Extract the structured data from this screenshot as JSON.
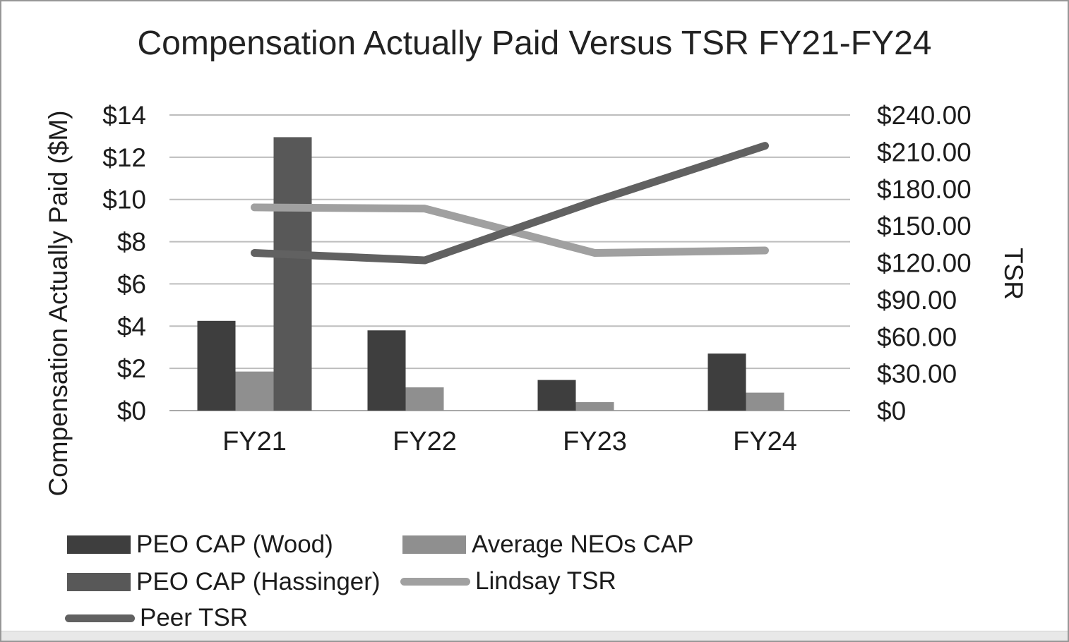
{
  "title": "Compensation Actually Paid Versus TSR FY21-FY24",
  "left_axis": {
    "title": "Compensation Actually Paid ($M)",
    "tick_labels": [
      "$0",
      "$2",
      "$4",
      "$6",
      "$8",
      "$10",
      "$12",
      "$14"
    ],
    "tick_values": [
      0,
      2,
      4,
      6,
      8,
      10,
      12,
      14
    ],
    "max": 14
  },
  "right_axis": {
    "title": "TSR",
    "tick_labels": [
      "$0",
      "$30.00",
      "$60.00",
      "$90.00",
      "$120.00",
      "$150.00",
      "$180.00",
      "$210.00",
      "$240.00"
    ],
    "tick_values": [
      0,
      30,
      60,
      90,
      120,
      150,
      180,
      210,
      240
    ],
    "max": 240
  },
  "legend": {
    "items": [
      {
        "label": "PEO CAP (Wood)",
        "marker": "bar",
        "color": "#3e3e3e"
      },
      {
        "label": "Average NEOs CAP",
        "marker": "bar",
        "color": "#8f8f8f"
      },
      {
        "label": "PEO CAP (Hassinger)",
        "marker": "bar",
        "color": "#585858"
      },
      {
        "label": "Lindsay TSR",
        "marker": "line",
        "color": "#a0a0a0"
      },
      {
        "label": "Peer TSR",
        "marker": "line",
        "color": "#616161"
      }
    ]
  },
  "chart_data": {
    "type": "bar",
    "subtype": "bar-line-combo",
    "title": "Compensation Actually Paid Versus TSR FY21-FY24",
    "categories": [
      "FY21",
      "FY22",
      "FY23",
      "FY24"
    ],
    "series": [
      {
        "name": "PEO CAP (Wood)",
        "type": "bar",
        "axis": "left",
        "color": "#3e3e3e",
        "values": [
          4.25,
          3.8,
          1.45,
          2.7
        ]
      },
      {
        "name": "Average NEOs CAP",
        "type": "bar",
        "axis": "left",
        "color": "#8f8f8f",
        "values": [
          1.85,
          1.1,
          0.4,
          0.85
        ]
      },
      {
        "name": "PEO CAP (Hassinger)",
        "type": "bar",
        "axis": "left",
        "color": "#585858",
        "values": [
          12.95,
          0,
          0,
          0
        ]
      },
      {
        "name": "Lindsay TSR",
        "type": "line",
        "axis": "right",
        "color": "#a0a0a0",
        "values": [
          165,
          164,
          128,
          130
        ]
      },
      {
        "name": "Peer TSR",
        "type": "line",
        "axis": "right",
        "color": "#616161",
        "values": [
          128,
          122,
          170,
          215
        ]
      }
    ],
    "ylabel_left": "Compensation Actually Paid ($M)",
    "ylabel_right": "TSR",
    "ylim_left": [
      0,
      14
    ],
    "ylim_right": [
      0,
      240
    ],
    "grid": "horizontal",
    "legend_position": "bottom-left",
    "colors": {
      "gridline": "#bdbdbd",
      "baseline": "#a9a9a9",
      "text": "#1c1c1c",
      "background": "#ffffff"
    }
  }
}
